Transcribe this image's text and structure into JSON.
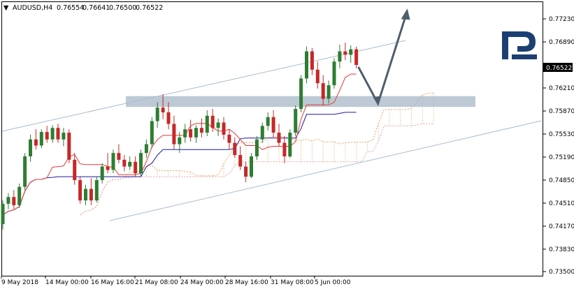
{
  "header": {
    "menu_arrow": "▼",
    "symbol": "AUDUSD,H4",
    "open": "0.76554",
    "high": "0.76641",
    "low": "0.76500",
    "close": "0.76522"
  },
  "logo": {
    "icon": "roboforex-R-logo",
    "color": "#1c3f73"
  },
  "colors": {
    "bull": "#2e7d32",
    "bear": "#c62828",
    "tenkan": "#e53935",
    "kijun": "#1a1aa8",
    "cloud_a": "#f0a060",
    "cloud_b": "#e2a0a0",
    "channel": "#a9bcd0",
    "zone": "#a7b7c7",
    "arrow": "#4f5e6b"
  },
  "chart_data": {
    "type": "candlestick",
    "instrument": "AUDUSD",
    "timeframe": "H4",
    "y_ticks": [
      "0.77230",
      "0.76890",
      "0.76210",
      "0.75870",
      "0.75530",
      "0.75190",
      "0.74850",
      "0.74510",
      "0.74170",
      "0.73830",
      "0.73500"
    ],
    "current_price": "0.76522",
    "ylim": [
      0.735,
      0.7745
    ],
    "x_labels": [
      "9 May 2018",
      "14 May 00:00",
      "16 May 16:00",
      "21 May 08:00",
      "24 May 00:00",
      "28 May 16:00",
      "31 May 08:00",
      "5 Jun 00:00"
    ],
    "support_zone": [
      0.7593,
      0.7609
    ],
    "forecast_path": [
      {
        "bar": 0,
        "price": 0.7652
      },
      {
        "bar": 4,
        "price": 0.7598
      },
      {
        "bar": 10,
        "price": 0.7735
      }
    ],
    "candles": [
      [
        0.742,
        0.7455,
        0.7412,
        0.745
      ],
      [
        0.745,
        0.7466,
        0.7442,
        0.746
      ],
      [
        0.746,
        0.747,
        0.7442,
        0.7448
      ],
      [
        0.7448,
        0.748,
        0.7444,
        0.7475
      ],
      [
        0.7475,
        0.7525,
        0.747,
        0.752
      ],
      [
        0.752,
        0.7552,
        0.7512,
        0.7545
      ],
      [
        0.7545,
        0.756,
        0.753,
        0.7536
      ],
      [
        0.7536,
        0.756,
        0.7532,
        0.7556
      ],
      [
        0.7556,
        0.7565,
        0.754,
        0.7545
      ],
      [
        0.7545,
        0.7566,
        0.754,
        0.7562
      ],
      [
        0.7562,
        0.7568,
        0.754,
        0.7545
      ],
      [
        0.7545,
        0.7562,
        0.7535,
        0.7555
      ],
      [
        0.7555,
        0.756,
        0.751,
        0.7515
      ],
      [
        0.7515,
        0.7525,
        0.7478,
        0.7485
      ],
      [
        0.7485,
        0.749,
        0.745,
        0.7455
      ],
      [
        0.7455,
        0.7478,
        0.7448,
        0.7472
      ],
      [
        0.7472,
        0.7488,
        0.7448,
        0.7455
      ],
      [
        0.7455,
        0.749,
        0.7452,
        0.7485
      ],
      [
        0.7485,
        0.751,
        0.748,
        0.7505
      ],
      [
        0.7505,
        0.7525,
        0.7495,
        0.75
      ],
      [
        0.75,
        0.753,
        0.7495,
        0.7525
      ],
      [
        0.7525,
        0.7538,
        0.751,
        0.7515
      ],
      [
        0.7515,
        0.7522,
        0.7498,
        0.7505
      ],
      [
        0.7505,
        0.752,
        0.75,
        0.7512
      ],
      [
        0.7512,
        0.752,
        0.749,
        0.7495
      ],
      [
        0.7495,
        0.753,
        0.749,
        0.7525
      ],
      [
        0.7525,
        0.7545,
        0.7518,
        0.7538
      ],
      [
        0.7538,
        0.7578,
        0.7532,
        0.7572
      ],
      [
        0.7572,
        0.76,
        0.7562,
        0.7592
      ],
      [
        0.7592,
        0.7612,
        0.7575,
        0.7585
      ],
      [
        0.7585,
        0.76,
        0.756,
        0.7568
      ],
      [
        0.7568,
        0.758,
        0.753,
        0.7538
      ],
      [
        0.7538,
        0.7556,
        0.7525,
        0.7548
      ],
      [
        0.7548,
        0.7568,
        0.754,
        0.756
      ],
      [
        0.756,
        0.7574,
        0.7542,
        0.7548
      ],
      [
        0.7548,
        0.7566,
        0.754,
        0.7562
      ],
      [
        0.7562,
        0.7576,
        0.7548,
        0.7555
      ],
      [
        0.7555,
        0.7588,
        0.755,
        0.758
      ],
      [
        0.758,
        0.759,
        0.7556,
        0.7562
      ],
      [
        0.7562,
        0.7576,
        0.755,
        0.757
      ],
      [
        0.757,
        0.7578,
        0.7545,
        0.7552
      ],
      [
        0.7552,
        0.756,
        0.753,
        0.754
      ],
      [
        0.754,
        0.7548,
        0.7518,
        0.7522
      ],
      [
        0.7522,
        0.7535,
        0.75,
        0.7505
      ],
      [
        0.7505,
        0.7512,
        0.7482,
        0.749
      ],
      [
        0.749,
        0.7525,
        0.7488,
        0.752
      ],
      [
        0.752,
        0.755,
        0.7515,
        0.7545
      ],
      [
        0.7545,
        0.757,
        0.754,
        0.7565
      ],
      [
        0.7565,
        0.7585,
        0.7558,
        0.7578
      ],
      [
        0.7578,
        0.7588,
        0.7548,
        0.7555
      ],
      [
        0.7555,
        0.7568,
        0.7535,
        0.754
      ],
      [
        0.754,
        0.755,
        0.751,
        0.752
      ],
      [
        0.752,
        0.756,
        0.7518,
        0.7555
      ],
      [
        0.7555,
        0.7595,
        0.755,
        0.759
      ],
      [
        0.759,
        0.764,
        0.7585,
        0.7635
      ],
      [
        0.7635,
        0.7682,
        0.7628,
        0.7675
      ],
      [
        0.7675,
        0.768,
        0.764,
        0.7648
      ],
      [
        0.7648,
        0.766,
        0.762,
        0.7628
      ],
      [
        0.7628,
        0.764,
        0.7595,
        0.7605
      ],
      [
        0.7605,
        0.7632,
        0.7598,
        0.7625
      ],
      [
        0.7625,
        0.7665,
        0.762,
        0.766
      ],
      [
        0.766,
        0.7685,
        0.765,
        0.7675
      ],
      [
        0.7675,
        0.7688,
        0.7662,
        0.767
      ],
      [
        0.767,
        0.7684,
        0.7658,
        0.7678
      ],
      [
        0.7678,
        0.7682,
        0.765,
        0.7655
      ]
    ]
  }
}
